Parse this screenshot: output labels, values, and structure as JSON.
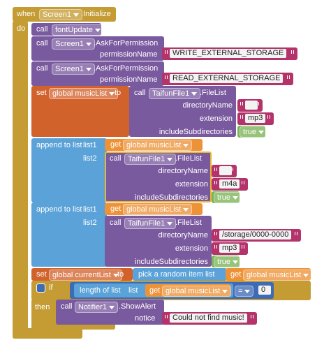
{
  "event": {
    "keyword": "when",
    "component": "Screen1",
    "name": ".Initialize",
    "do": "do"
  },
  "stmts": [
    {
      "call": "call",
      "procedure": "fontUpdate"
    },
    {
      "call": "call",
      "component": "Screen1",
      "method": ".AskForPermission",
      "param": "permissionName",
      "value": "WRITE_EXTERNAL_STORAGE"
    },
    {
      "call": "call",
      "component": "Screen1",
      "method": ".AskForPermission",
      "param": "permissionName",
      "value": "READ_EXTERNAL_STORAGE"
    },
    {
      "set": "set",
      "variable": "global musicList",
      "to": "to",
      "call": "call",
      "component": "TaifunFile1",
      "method": ".FileList",
      "params": [
        {
          "name": "directoryName"
        },
        {
          "name": "extension",
          "value": "mp3"
        },
        {
          "name": "includeSubdirectories",
          "value": "true"
        }
      ]
    },
    {
      "label": "append to list",
      "list1": "list1",
      "list2": "list2",
      "get": "get",
      "variable": "global musicList",
      "call": "call",
      "component": "TaifunFile1",
      "method": ".FileList",
      "params": [
        {
          "name": "directoryName"
        },
        {
          "name": "extension",
          "value": "m4a"
        },
        {
          "name": "includeSubdirectories",
          "value": "true"
        }
      ]
    },
    {
      "label": "append to list",
      "list1": "list1",
      "list2": "list2",
      "get": "get",
      "variable": "global musicList",
      "call": "call",
      "component": "TaifunFile1",
      "method": ".FileList",
      "params": [
        {
          "name": "directoryName",
          "value": "/storage/0000-0000"
        },
        {
          "name": "extension",
          "value": "mp3"
        },
        {
          "name": "includeSubdirectories",
          "value": "true"
        }
      ]
    },
    {
      "set": "set",
      "variable": "global currentList",
      "to": "to",
      "pick": "pick a random item",
      "list": "list",
      "get": "get",
      "source": "global musicList"
    },
    {
      "if": "if",
      "then": "then",
      "length": "length of list",
      "list": "list",
      "get": "get",
      "variable": "global musicList",
      "op": "=",
      "number": "0",
      "call": "call",
      "component": "Notifier1",
      "method": ".ShowAlert",
      "param": "notice",
      "value": "Could not find music!"
    }
  ]
}
